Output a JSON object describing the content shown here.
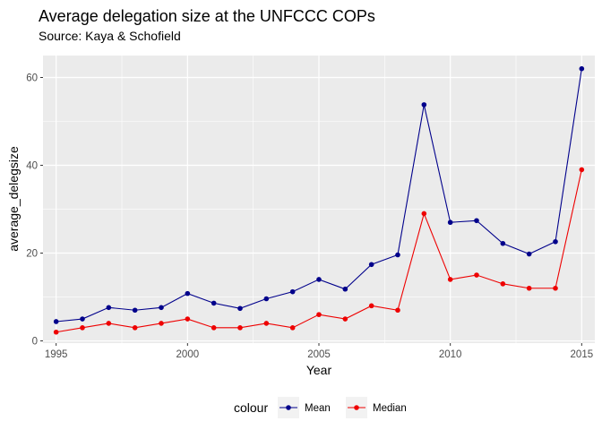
{
  "chart_data": {
    "type": "line",
    "title": "Average delegation size at the UNFCCC COPs",
    "subtitle": "Source: Kaya & Schofield",
    "xlabel": "Year",
    "ylabel": "average_delegsize",
    "xlim": [
      1994.5,
      2015.5
    ],
    "ylim": [
      -0.5,
      65
    ],
    "x_ticks": [
      1995,
      2000,
      2005,
      2010,
      2015
    ],
    "y_ticks": [
      0,
      20,
      40,
      60
    ],
    "grid": true,
    "legend": {
      "title": "colour",
      "position": "bottom"
    },
    "x": [
      1995,
      1996,
      1997,
      1998,
      1999,
      2000,
      2001,
      2002,
      2003,
      2004,
      2005,
      2006,
      2007,
      2008,
      2009,
      2010,
      2011,
      2012,
      2013,
      2014,
      2015
    ],
    "series": [
      {
        "name": "Mean",
        "color": "#00008b",
        "values": [
          4.4,
          5.0,
          7.6,
          7.0,
          7.6,
          10.8,
          8.6,
          7.4,
          9.6,
          11.2,
          14.0,
          11.8,
          17.4,
          19.6,
          53.8,
          27.0,
          27.4,
          22.2,
          19.8,
          22.6,
          62.0
        ]
      },
      {
        "name": "Median",
        "color": "#ee0000",
        "values": [
          2,
          3,
          4,
          3,
          4,
          5,
          3,
          3,
          4,
          3,
          6,
          5,
          8,
          7,
          29,
          14,
          15,
          13,
          12,
          12,
          39
        ]
      }
    ]
  }
}
